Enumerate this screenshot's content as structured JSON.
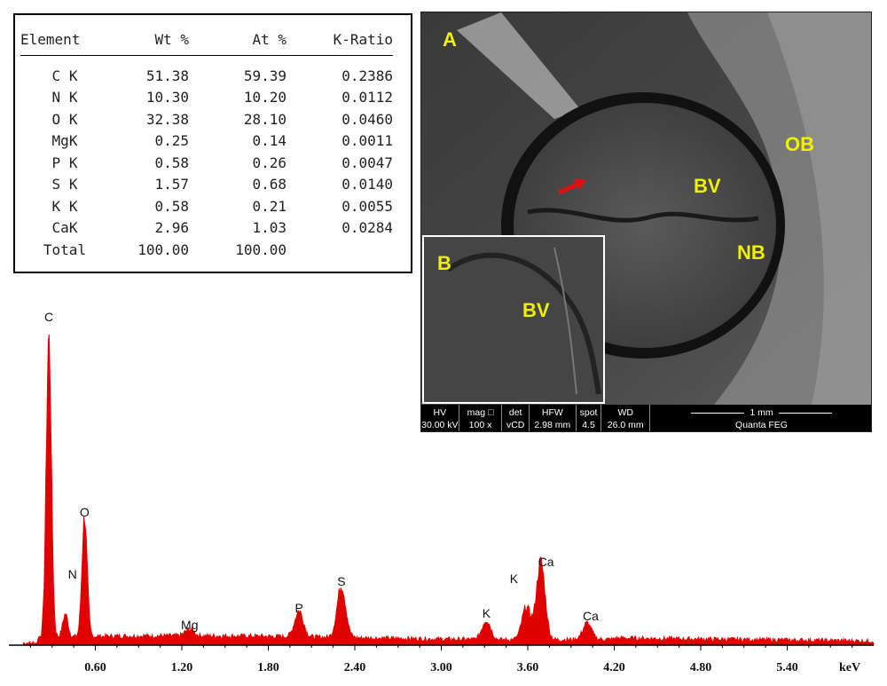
{
  "composition_table": {
    "headers": [
      "Element",
      "Wt %",
      "At %",
      "K-Ratio"
    ],
    "rows": [
      {
        "element": "C K",
        "wt": "51.38",
        "at": "59.39",
        "k": "0.2386"
      },
      {
        "element": "N K",
        "wt": "10.30",
        "at": "10.20",
        "k": "0.0112"
      },
      {
        "element": "O K",
        "wt": "32.38",
        "at": "28.10",
        "k": "0.0460"
      },
      {
        "element": "MgK",
        "wt": "0.25",
        "at": "0.14",
        "k": "0.0011"
      },
      {
        "element": "P K",
        "wt": "0.58",
        "at": "0.26",
        "k": "0.0047"
      },
      {
        "element": "S K",
        "wt": "1.57",
        "at": "0.68",
        "k": "0.0140"
      },
      {
        "element": "K K",
        "wt": "0.58",
        "at": "0.21",
        "k": "0.0055"
      },
      {
        "element": "CaK",
        "wt": "2.96",
        "at": "1.03",
        "k": "0.0284"
      },
      {
        "element": "Total",
        "wt": "100.00",
        "at": "100.00",
        "k": ""
      }
    ]
  },
  "micrograph": {
    "labels": {
      "panel_a": "A",
      "panel_b": "B",
      "ob": "OB",
      "bv_main": "BV",
      "nb": "NB",
      "bv_inset": "BV"
    },
    "info_bar": [
      {
        "top": "HV",
        "bottom": "30.00 kV"
      },
      {
        "top": "mag □",
        "bottom": "100 x"
      },
      {
        "top": "det",
        "bottom": "vCD"
      },
      {
        "top": "HFW",
        "bottom": "2.98 mm"
      },
      {
        "top": "spot",
        "bottom": "4.5"
      },
      {
        "top": "WD",
        "bottom": "26.0 mm"
      }
    ],
    "scale_label": "1 mm",
    "instrument": "Quanta FEG",
    "colors": {
      "label": "#f0f000",
      "arrow": "#e01010"
    }
  },
  "chart_data": {
    "type": "line",
    "xlabel": "keV",
    "x_ticks": [
      "0.60",
      "1.20",
      "1.80",
      "2.40",
      "3.00",
      "3.60",
      "4.20",
      "4.80",
      "5.40"
    ],
    "xlim": [
      0.0,
      6.0
    ],
    "ylim": [
      0,
      100
    ],
    "color": "#e00000",
    "peaks": [
      {
        "label": "C",
        "x": 0.277,
        "y": 92
      },
      {
        "label": "N",
        "x": 0.392,
        "y": 7
      },
      {
        "label": "O",
        "x": 0.525,
        "y": 37
      },
      {
        "label": "Mg",
        "x": 1.254,
        "y": 2
      },
      {
        "label": "P",
        "x": 2.013,
        "y": 8
      },
      {
        "label": "S",
        "x": 2.307,
        "y": 16
      },
      {
        "label": "K",
        "x": 3.313,
        "y": 6
      },
      {
        "label": "Ca",
        "x": 3.69,
        "y": 24
      },
      {
        "label": "K",
        "x": 3.59,
        "y": 10
      },
      {
        "label": "Ca",
        "x": 4.012,
        "y": 5
      }
    ],
    "peak_labels": [
      {
        "text": "C",
        "x": 0.277
      },
      {
        "text": "N",
        "x": 0.392
      },
      {
        "text": "O",
        "x": 0.525
      },
      {
        "text": "Mg",
        "x": 1.254
      },
      {
        "text": "P",
        "x": 2.013
      },
      {
        "text": "S",
        "x": 2.307
      },
      {
        "text": "K",
        "x": 3.313
      },
      {
        "text": "K",
        "x": 3.59
      },
      {
        "text": "Ca",
        "x": 3.69
      },
      {
        "text": "Ca",
        "x": 4.012
      }
    ]
  }
}
